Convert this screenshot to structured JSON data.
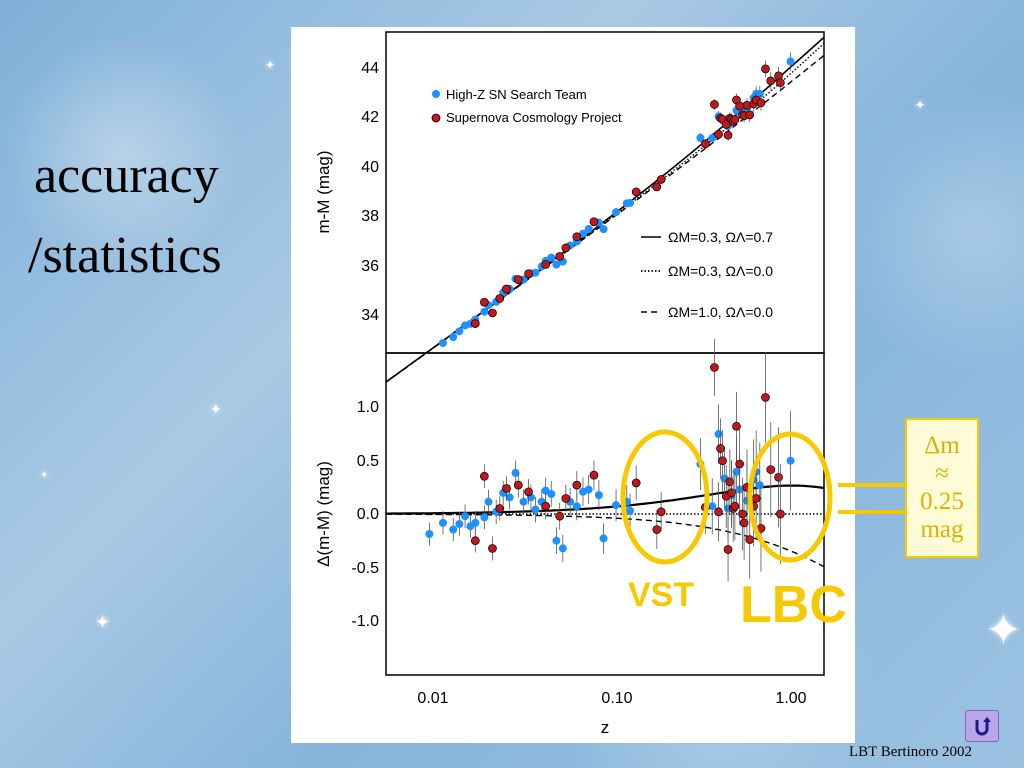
{
  "slide": {
    "title_line1": "accuracy",
    "title_line2": "/statistics",
    "footer": "LBT Bertinoro 2002",
    "annotation_lines": [
      "Δm",
      "≈",
      "0.25",
      "mag"
    ],
    "label_vst": "VST",
    "label_lbc": "LBC",
    "highlight_color": "#f7c900"
  },
  "chart_data": [
    {
      "type": "scatter",
      "panel": "top",
      "ylabel": "m-M (mag)",
      "xscale": "log",
      "xlim": [
        0.005,
        1.5
      ],
      "ylim": [
        32.8,
        45.4
      ],
      "yticks": [
        "34",
        "36",
        "38",
        "40",
        "42",
        "44"
      ],
      "legend": [
        {
          "name": "High-Z SN Search Team",
          "color": "#1e90ff"
        },
        {
          "name": "Supernova Cosmology Project",
          "color": "#c0181c"
        }
      ],
      "model_lines": [
        {
          "style": "solid",
          "label": "ΩM=0.3, ΩΛ=0.7"
        },
        {
          "style": "dotted",
          "label": "ΩM=0.3, ΩΛ=0.0"
        },
        {
          "style": "dashed",
          "label": "ΩM=1.0, ΩΛ=0.0"
        }
      ]
    },
    {
      "type": "scatter",
      "panel": "bottom",
      "xlabel": "z",
      "ylabel": "Δ(m-M) (mag)",
      "xscale": "log",
      "xlim": [
        0.005,
        1.5
      ],
      "ylim": [
        -1.45,
        1.45
      ],
      "xticks": [
        "0.01",
        "0.10",
        "1.00"
      ],
      "yticks": [
        "1.0",
        "0.5",
        "0.0",
        "-0.5",
        "-1.0"
      ],
      "series": [
        {
          "name": "High-Z SN Search Team",
          "color": "#1e90ff",
          "points": [
            [
              0.0088,
              -0.18
            ],
            [
              0.0105,
              -0.08
            ],
            [
              0.012,
              -0.14
            ],
            [
              0.013,
              -0.09
            ],
            [
              0.014,
              -0.02
            ],
            [
              0.015,
              -0.11
            ],
            [
              0.016,
              -0.08
            ],
            [
              0.018,
              -0.03
            ],
            [
              0.019,
              0.11
            ],
            [
              0.021,
              0.02
            ],
            [
              0.023,
              0.19
            ],
            [
              0.025,
              0.15
            ],
            [
              0.027,
              0.37
            ],
            [
              0.03,
              0.11
            ],
            [
              0.033,
              0.15
            ],
            [
              0.035,
              0.04
            ],
            [
              0.038,
              0.11
            ],
            [
              0.04,
              0.21
            ],
            [
              0.043,
              0.18
            ],
            [
              0.046,
              -0.24
            ],
            [
              0.05,
              -0.31
            ],
            [
              0.055,
              0.11
            ],
            [
              0.06,
              0.07
            ],
            [
              0.065,
              0.2
            ],
            [
              0.07,
              0.22
            ],
            [
              0.08,
              0.17
            ],
            [
              0.085,
              -0.22
            ],
            [
              0.1,
              0.08
            ],
            [
              0.115,
              0.11
            ],
            [
              0.12,
              0.03
            ],
            [
              0.3,
              0.45
            ],
            [
              0.35,
              0.07
            ],
            [
              0.38,
              0.72
            ],
            [
              0.41,
              0.32
            ],
            [
              0.43,
              0.05
            ],
            [
              0.45,
              0.17
            ],
            [
              0.48,
              0.38
            ],
            [
              0.5,
              0.22
            ],
            [
              0.55,
              0.12
            ],
            [
              0.6,
              0.31
            ],
            [
              0.62,
              0.38
            ],
            [
              0.65,
              0.26
            ],
            [
              0.97,
              0.48
            ]
          ]
        },
        {
          "name": "Supernova Cosmology Project",
          "color": "#c0181c",
          "points": [
            [
              0.016,
              -0.24
            ],
            [
              0.018,
              0.34
            ],
            [
              0.02,
              -0.31
            ],
            [
              0.022,
              0.05
            ],
            [
              0.024,
              0.23
            ],
            [
              0.028,
              0.26
            ],
            [
              0.032,
              0.2
            ],
            [
              0.04,
              0.07
            ],
            [
              0.048,
              -0.02
            ],
            [
              0.052,
              0.14
            ],
            [
              0.06,
              0.26
            ],
            [
              0.075,
              0.35
            ],
            [
              0.13,
              0.28
            ],
            [
              0.17,
              -0.14
            ],
            [
              0.18,
              0.02
            ],
            [
              0.32,
              0.06
            ],
            [
              0.36,
              1.32
            ],
            [
              0.38,
              0.02
            ],
            [
              0.39,
              0.59
            ],
            [
              0.4,
              0.48
            ],
            [
              0.42,
              0.16
            ],
            [
              0.43,
              -0.32
            ],
            [
              0.44,
              0.29
            ],
            [
              0.45,
              0.19
            ],
            [
              0.46,
              0.05
            ],
            [
              0.47,
              0.07
            ],
            [
              0.48,
              0.79
            ],
            [
              0.5,
              0.45
            ],
            [
              0.52,
              0.0
            ],
            [
              0.53,
              -0.08
            ],
            [
              0.55,
              0.24
            ],
            [
              0.57,
              -0.23
            ],
            [
              0.6,
              0.07
            ],
            [
              0.62,
              0.14
            ],
            [
              0.66,
              -0.13
            ],
            [
              0.7,
              1.05
            ],
            [
              0.75,
              0.4
            ],
            [
              0.83,
              0.33
            ],
            [
              0.85,
              0.0
            ]
          ]
        }
      ]
    }
  ]
}
